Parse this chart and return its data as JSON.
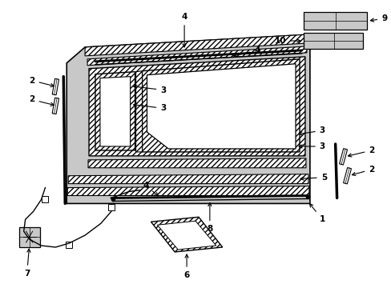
{
  "bg_color": "#ffffff",
  "line_color": "#000000",
  "gray_fill": "#c8c8c8",
  "lw_main": 1.0,
  "lw_thick": 1.5,
  "fs": 7.5
}
